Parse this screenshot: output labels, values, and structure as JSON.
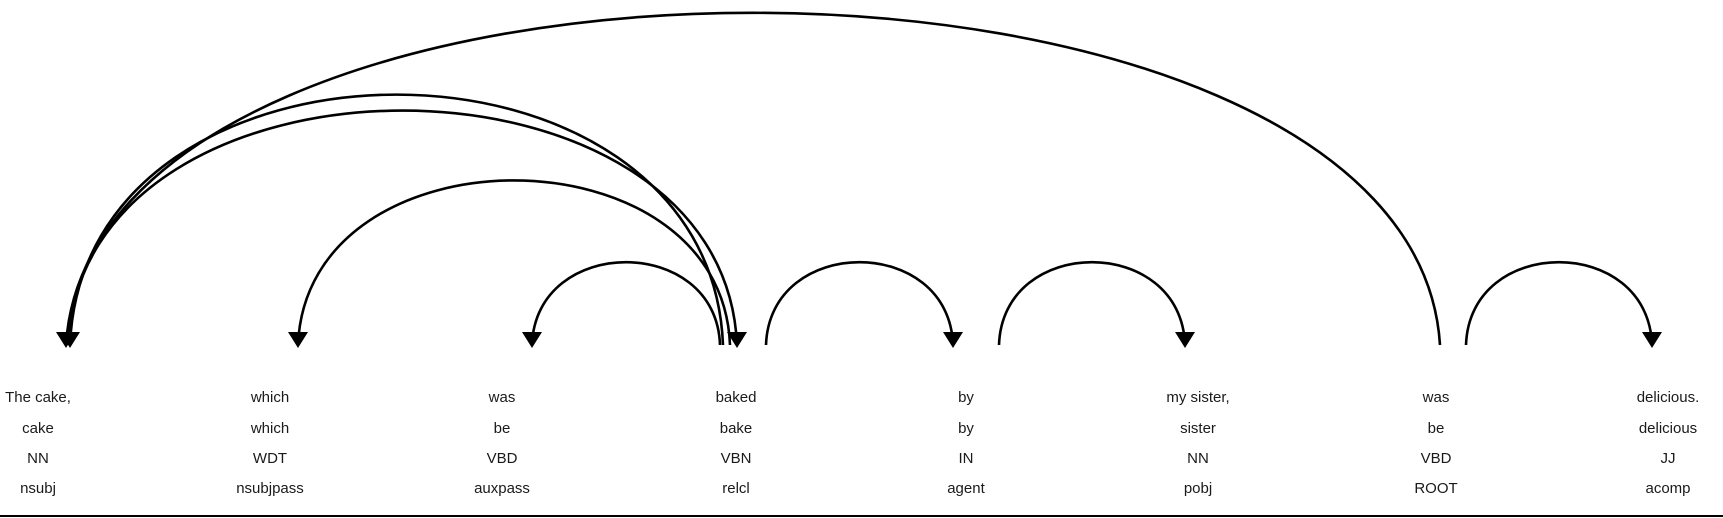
{
  "tokens": [
    {
      "text": "The cake,",
      "lemma": "cake",
      "tag": "NN",
      "dep": "nsubj"
    },
    {
      "text": "which",
      "lemma": "which",
      "tag": "WDT",
      "dep": "nsubjpass"
    },
    {
      "text": "was",
      "lemma": "be",
      "tag": "VBD",
      "dep": "auxpass"
    },
    {
      "text": "baked",
      "lemma": "bake",
      "tag": "VBN",
      "dep": "relcl"
    },
    {
      "text": "by",
      "lemma": "by",
      "tag": "IN",
      "dep": "agent"
    },
    {
      "text": "my sister,",
      "lemma": "sister",
      "tag": "NN",
      "dep": "pobj"
    },
    {
      "text": "was",
      "lemma": "be",
      "tag": "VBD",
      "dep": "ROOT"
    },
    {
      "text": "delicious.",
      "lemma": "delicious",
      "tag": "JJ",
      "dep": "acomp"
    }
  ],
  "arcs": [
    {
      "from": 6,
      "to": 0
    },
    {
      "from": 3,
      "to": 0
    },
    {
      "from": 3,
      "to": 1
    },
    {
      "from": 3,
      "to": 2
    },
    {
      "from": 0,
      "to": 3
    },
    {
      "from": 3,
      "to": 4
    },
    {
      "from": 4,
      "to": 5
    },
    {
      "from": 6,
      "to": 7
    }
  ]
}
